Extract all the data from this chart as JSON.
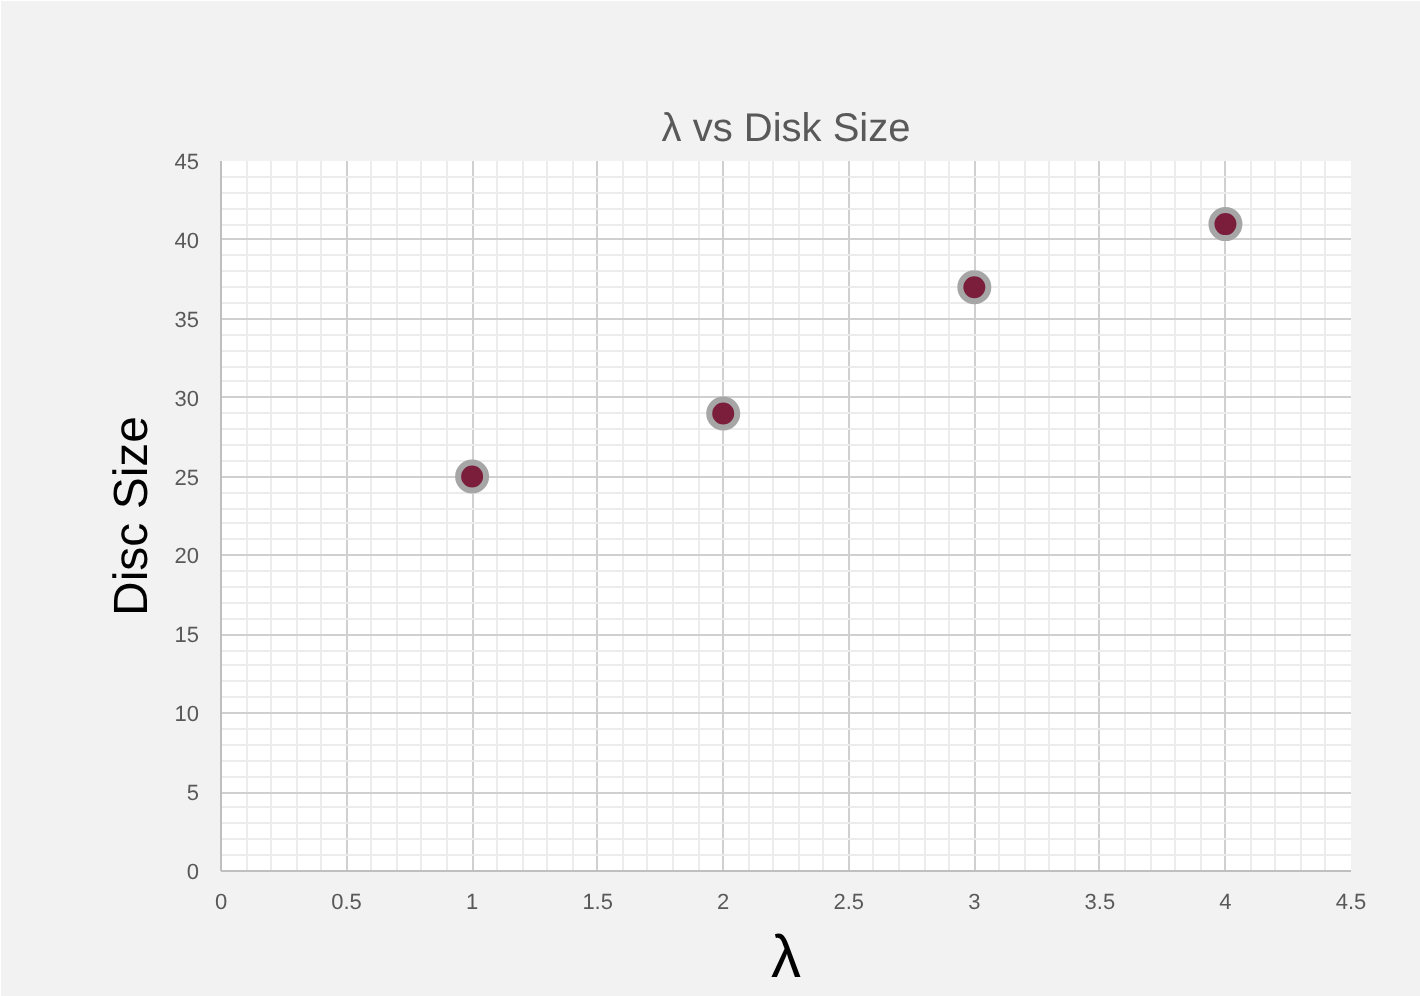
{
  "chart_data": {
    "type": "scatter",
    "title": "λ vs Disk Size",
    "xlabel": "λ",
    "ylabel": "Disc Size",
    "x": [
      1,
      2,
      3,
      4
    ],
    "series": [
      {
        "color": "#7b1e3c",
        "values": [
          25,
          29,
          37,
          41
        ]
      }
    ],
    "xlim": [
      0,
      4.5
    ],
    "xticks": [
      0,
      0.5,
      1,
      1.5,
      2,
      2.5,
      3,
      3.5,
      4,
      4.5
    ],
    "ylim": [
      0,
      45
    ],
    "yticks": [
      0,
      5,
      10,
      15,
      20,
      25,
      30,
      35,
      40,
      45
    ],
    "grid": true,
    "marker": "circle"
  }
}
